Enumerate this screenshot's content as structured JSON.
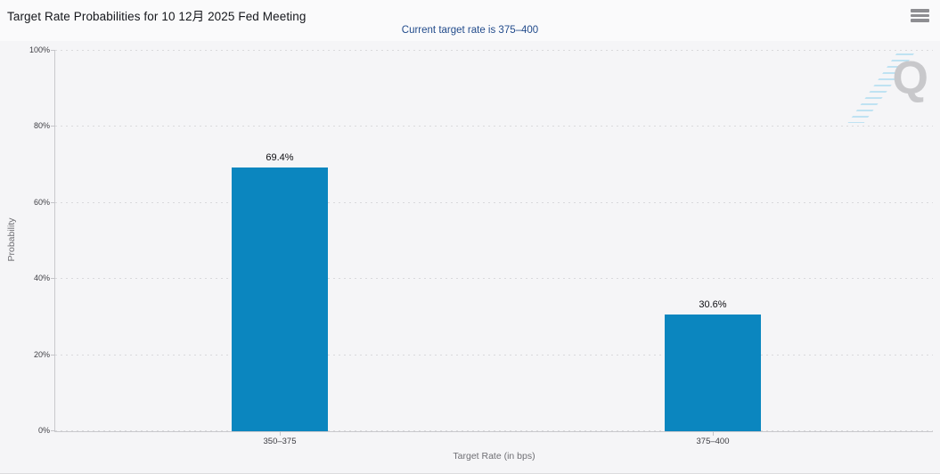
{
  "header": {
    "menu_icon": "hamburger-menu-icon"
  },
  "watermark": {
    "letter": "Q"
  },
  "chart_data": {
    "type": "bar",
    "title": "Target Rate Probabilities for 10 12月 2025 Fed Meeting",
    "subtitle": "Current target rate is 375–400",
    "categories": [
      "350–375",
      "375–400"
    ],
    "values": [
      69.4,
      30.6
    ],
    "value_labels": [
      "69.4%",
      "30.6%"
    ],
    "xlabel": "Target Rate (in bps)",
    "ylabel": "Probability",
    "ylim": [
      0,
      100
    ],
    "yticks": [
      "0%",
      "20%",
      "40%",
      "60%",
      "80%",
      "100%"
    ],
    "grid": "dotted-horizontal",
    "legend": "none",
    "bar_color": "#0b86bf",
    "background_color": "#f5f5f7",
    "subtitle_color": "#234c8c"
  }
}
